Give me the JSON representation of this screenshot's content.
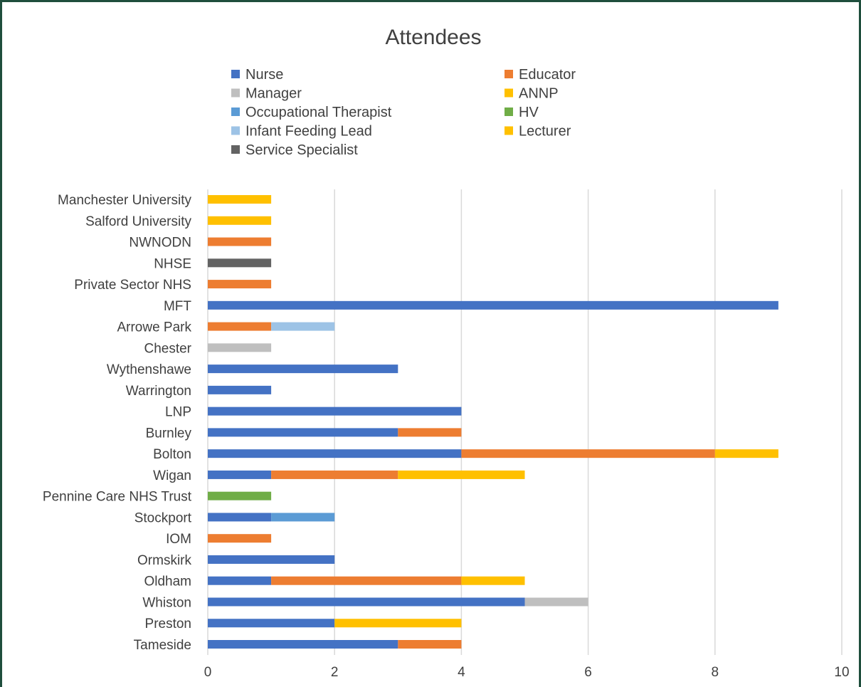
{
  "chart_data": {
    "type": "bar",
    "orientation": "horizontal",
    "stacked": true,
    "title": "Attendees",
    "xlabel": "",
    "ylabel": "",
    "xlim": [
      0,
      10
    ],
    "xticks": [
      0,
      2,
      4,
      6,
      8,
      10
    ],
    "grid": true,
    "legend_position": "top",
    "categories": [
      "Tameside",
      "Preston",
      "Whiston",
      "Oldham",
      "Ormskirk",
      "IOM",
      "Stockport",
      "Pennine Care NHS Trust",
      "Wigan",
      "Bolton",
      "Burnley",
      "LNP",
      "Warrington",
      "Wythenshawe",
      "Chester",
      "Arrowe Park",
      "MFT",
      "Private Sector NHS",
      "NHSE",
      "NWNODN",
      "Salford University",
      "Manchester University"
    ],
    "series": [
      {
        "name": "Nurse",
        "color": "#4472c4",
        "values": [
          3,
          2,
          5,
          1,
          2,
          0,
          1,
          0,
          1,
          4,
          3,
          4,
          1,
          3,
          0,
          0,
          9,
          0,
          0,
          0,
          0,
          0
        ]
      },
      {
        "name": "Educator",
        "color": "#ed7d31",
        "values": [
          1,
          0,
          0,
          3,
          0,
          1,
          0,
          0,
          2,
          4,
          1,
          0,
          0,
          0,
          0,
          1,
          0,
          1,
          0,
          1,
          0,
          0
        ]
      },
      {
        "name": "Manager",
        "color": "#bfbfbf",
        "values": [
          0,
          0,
          1,
          0,
          0,
          0,
          0,
          0,
          0,
          0,
          0,
          0,
          0,
          0,
          1,
          0,
          0,
          0,
          0,
          0,
          0,
          0
        ]
      },
      {
        "name": "ANNP",
        "color": "#ffc000",
        "values": [
          0,
          2,
          0,
          1,
          0,
          0,
          0,
          0,
          2,
          1,
          0,
          0,
          0,
          0,
          0,
          0,
          0,
          0,
          0,
          0,
          0,
          0
        ]
      },
      {
        "name": "Occupational Therapist",
        "color": "#5b9bd5",
        "values": [
          0,
          0,
          0,
          0,
          0,
          0,
          1,
          0,
          0,
          0,
          0,
          0,
          0,
          0,
          0,
          0,
          0,
          0,
          0,
          0,
          0,
          0
        ]
      },
      {
        "name": "HV",
        "color": "#70ad47",
        "values": [
          0,
          0,
          0,
          0,
          0,
          0,
          0,
          1,
          0,
          0,
          0,
          0,
          0,
          0,
          0,
          0,
          0,
          0,
          0,
          0,
          0,
          0
        ]
      },
      {
        "name": "Infant Feeding Lead",
        "color": "#9dc3e6",
        "values": [
          0,
          0,
          0,
          0,
          0,
          0,
          0,
          0,
          0,
          0,
          0,
          0,
          0,
          0,
          0,
          1,
          0,
          0,
          0,
          0,
          0,
          0
        ]
      },
      {
        "name": "Lecturer",
        "color": "#ffc000",
        "values": [
          0,
          0,
          0,
          0,
          0,
          0,
          0,
          0,
          0,
          0,
          0,
          0,
          0,
          0,
          0,
          0,
          0,
          0,
          0,
          0,
          1,
          1
        ]
      },
      {
        "name": "Service Specialist",
        "color": "#636363",
        "values": [
          0,
          0,
          0,
          0,
          0,
          0,
          0,
          0,
          0,
          0,
          0,
          0,
          0,
          0,
          0,
          0,
          0,
          0,
          1,
          0,
          0,
          0
        ]
      }
    ]
  }
}
